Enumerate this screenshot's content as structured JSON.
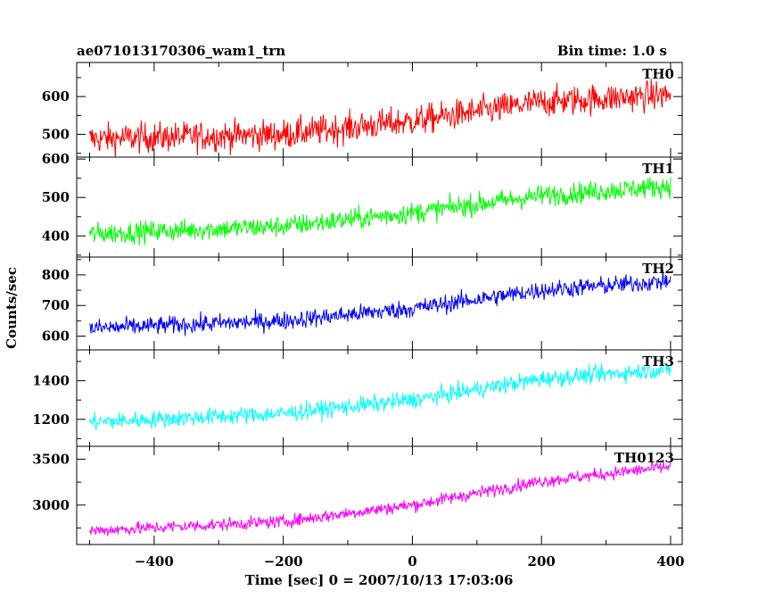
{
  "header": {
    "left": "ae071013170306_wam1_trn",
    "right": "Bin time: 1.0 s"
  },
  "chart_data": {
    "type": "line",
    "title": "ae071013170306_wam1_trn",
    "subtitle": "Bin time: 1.0 s",
    "xlabel": "Time [sec] 0 = 2007/10/13 17:03:06",
    "ylabel": "Counts/sec",
    "xlim": [
      -520,
      418
    ],
    "x": {
      "start": -500,
      "end": 400,
      "step": 1
    },
    "xticks": [
      -400,
      -200,
      0,
      200,
      400
    ],
    "xtick_labels": [
      "−400",
      "−200",
      "0",
      "200",
      "400"
    ],
    "grid": false,
    "panels": [
      {
        "name": "TH0",
        "color": "#ff0000",
        "ylim": [
          440,
          690
        ],
        "yticks": [
          500,
          600
        ],
        "ytick_labels": [
          "500",
          "600"
        ],
        "trend": [
          {
            "x": -500,
            "y": 488
          },
          {
            "x": -200,
            "y": 500
          },
          {
            "x": 0,
            "y": 535
          },
          {
            "x": 200,
            "y": 585
          },
          {
            "x": 400,
            "y": 605
          }
        ],
        "noise": 40
      },
      {
        "name": "TH1",
        "color": "#00ff00",
        "ylim": [
          345,
          605
        ],
        "yticks": [
          400,
          500,
          600
        ],
        "ytick_labels": [
          "400",
          "500",
          "600"
        ],
        "trend": [
          {
            "x": -500,
            "y": 405
          },
          {
            "x": -200,
            "y": 425
          },
          {
            "x": 0,
            "y": 460
          },
          {
            "x": 200,
            "y": 505
          },
          {
            "x": 400,
            "y": 530
          }
        ],
        "noise": 28
      },
      {
        "name": "TH2",
        "color": "#0000ff",
        "ylim": [
          555,
          858
        ],
        "yticks": [
          600,
          700,
          800
        ],
        "ytick_labels": [
          "600",
          "700",
          "800"
        ],
        "trend": [
          {
            "x": -500,
            "y": 625
          },
          {
            "x": -200,
            "y": 650
          },
          {
            "x": 0,
            "y": 690
          },
          {
            "x": 200,
            "y": 750
          },
          {
            "x": 400,
            "y": 780
          }
        ],
        "noise": 30
      },
      {
        "name": "TH3",
        "color": "#00ffff",
        "ylim": [
          1060,
          1560
        ],
        "yticks": [
          1200,
          1400
        ],
        "ytick_labels": [
          "1200",
          "1400"
        ],
        "trend": [
          {
            "x": -500,
            "y": 1185
          },
          {
            "x": -200,
            "y": 1230
          },
          {
            "x": 0,
            "y": 1300
          },
          {
            "x": 200,
            "y": 1410
          },
          {
            "x": 400,
            "y": 1460
          }
        ],
        "noise": 45
      },
      {
        "name": "TH0123",
        "color": "#ff00ff",
        "ylim": [
          2570,
          3640
        ],
        "yticks": [
          3000,
          3500
        ],
        "ytick_labels": [
          "3000",
          "3500"
        ],
        "trend": [
          {
            "x": -500,
            "y": 2720
          },
          {
            "x": -200,
            "y": 2820
          },
          {
            "x": 0,
            "y": 3000
          },
          {
            "x": 200,
            "y": 3260
          },
          {
            "x": 400,
            "y": 3420
          }
        ],
        "noise": 70
      }
    ]
  }
}
